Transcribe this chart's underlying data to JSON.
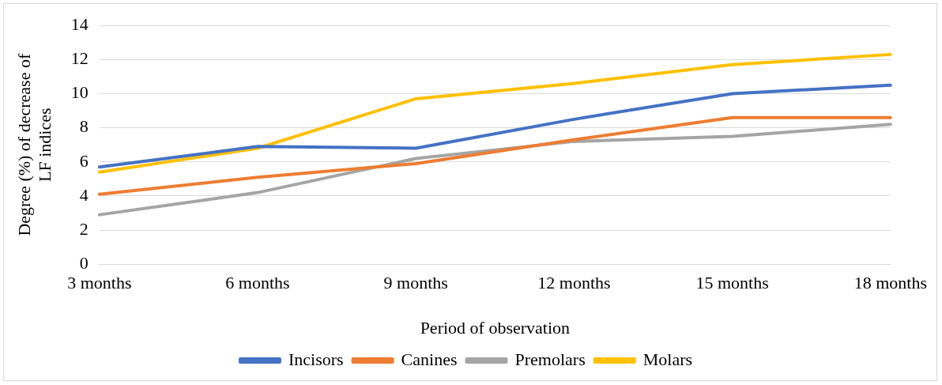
{
  "chart_data": {
    "type": "line",
    "xlabel": "Period of observation",
    "ylabel": "Degree (%) of decrease of LF indices",
    "categories": [
      "3 months",
      "6 months",
      "9 months",
      "12 months",
      "15 months",
      "18 months"
    ],
    "series": [
      {
        "name": "Incisors",
        "color": "#4472c4",
        "values": [
          5.7,
          6.9,
          6.8,
          8.5,
          10.0,
          10.5
        ]
      },
      {
        "name": "Canines",
        "color": "#ed7d31",
        "values": [
          4.1,
          5.1,
          5.9,
          7.3,
          8.6,
          8.6
        ]
      },
      {
        "name": "Premolars",
        "color": "#a5a5a5",
        "values": [
          2.9,
          4.2,
          6.2,
          7.2,
          7.5,
          8.2
        ]
      },
      {
        "name": "Molars",
        "color": "#ffc000",
        "values": [
          5.4,
          6.8,
          9.7,
          10.6,
          11.7,
          12.3
        ]
      }
    ],
    "ylim": [
      0,
      14
    ],
    "yticks": [
      0,
      2,
      4,
      6,
      8,
      10,
      12,
      14
    ],
    "grid": "y",
    "legend": "bottom",
    "marker": "none",
    "line_style": "solid"
  }
}
